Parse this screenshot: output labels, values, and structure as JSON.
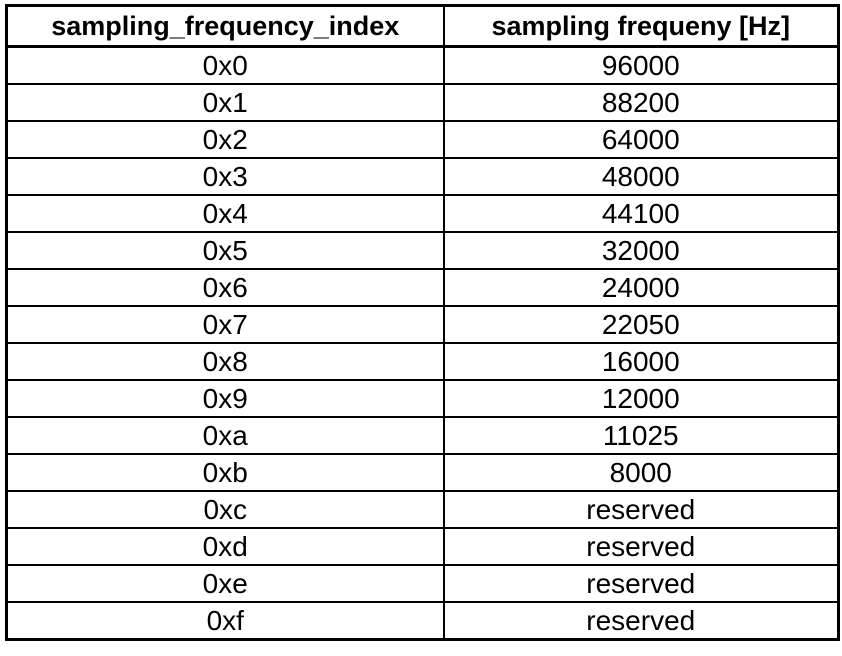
{
  "table": {
    "headers": [
      "sampling_frequency_index",
      "sampling frequeny [Hz]"
    ],
    "rows": [
      [
        "0x0",
        "96000"
      ],
      [
        "0x1",
        "88200"
      ],
      [
        "0x2",
        "64000"
      ],
      [
        "0x3",
        "48000"
      ],
      [
        "0x4",
        "44100"
      ],
      [
        "0x5",
        "32000"
      ],
      [
        "0x6",
        "24000"
      ],
      [
        "0x7",
        "22050"
      ],
      [
        "0x8",
        "16000"
      ],
      [
        "0x9",
        "12000"
      ],
      [
        "0xa",
        "11025"
      ],
      [
        "0xb",
        "8000"
      ],
      [
        "0xc",
        "reserved"
      ],
      [
        "0xd",
        "reserved"
      ],
      [
        "0xe",
        "reserved"
      ],
      [
        "0xf",
        "reserved"
      ]
    ]
  }
}
